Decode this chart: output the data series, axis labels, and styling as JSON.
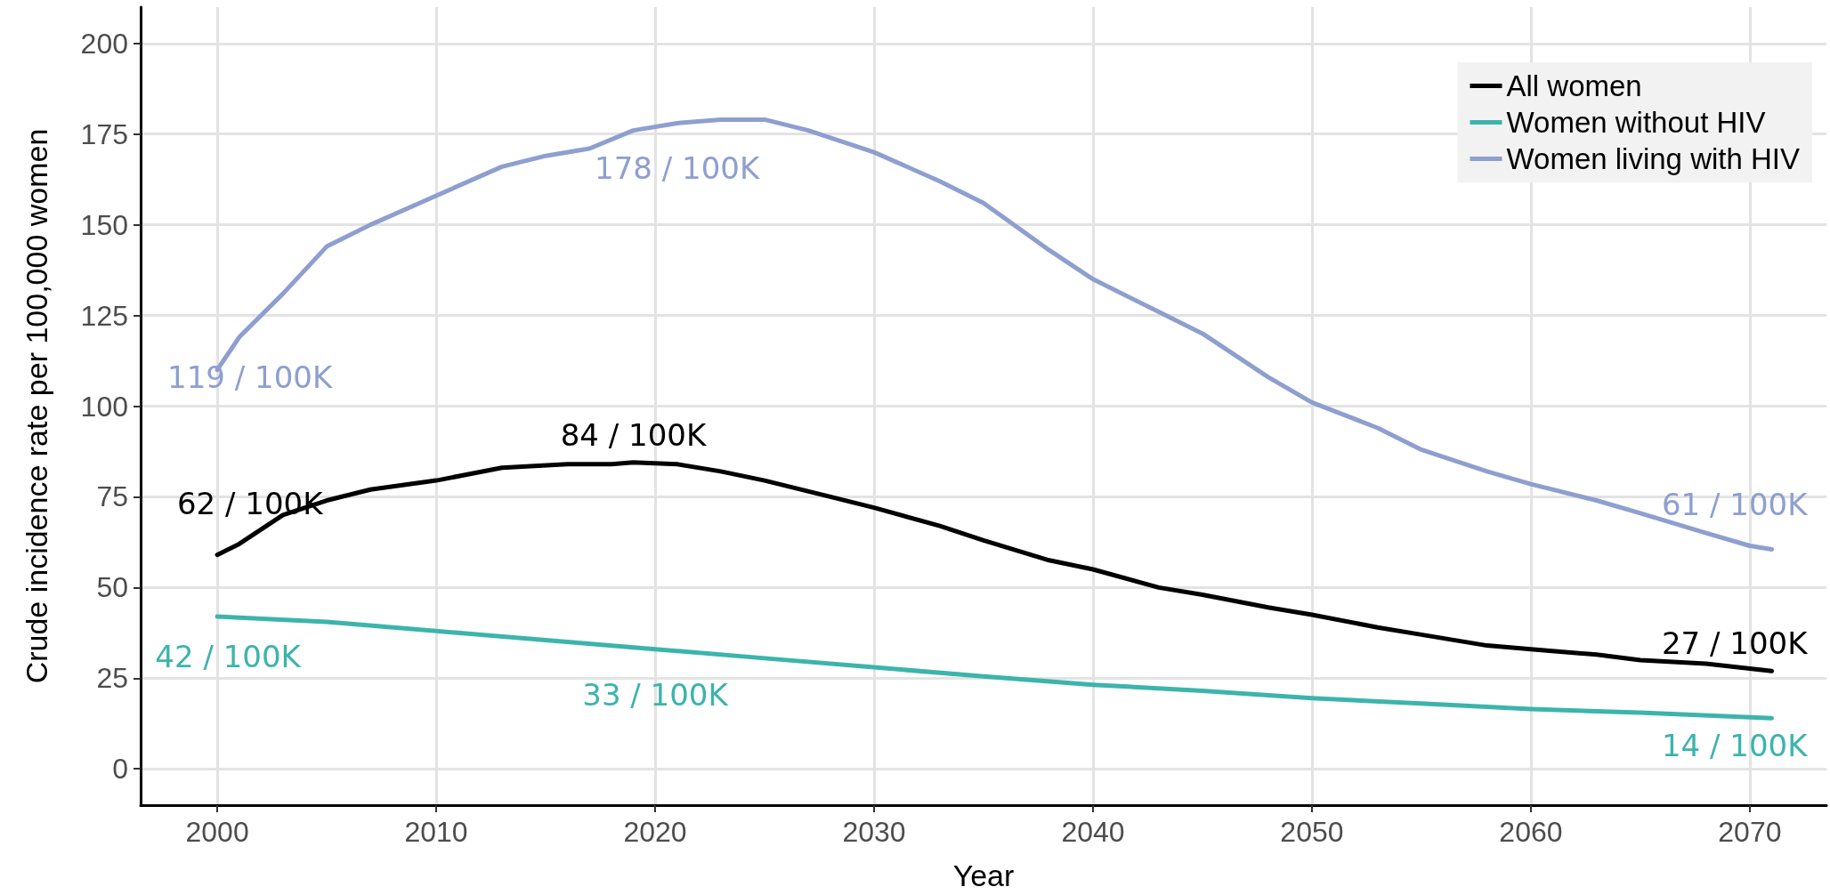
{
  "chart_data": {
    "type": "line",
    "xlabel": "Year",
    "ylabel": "Crude incidence rate per 100,000 women",
    "xlim": [
      1996.5,
      2073.5
    ],
    "ylim": [
      -10,
      210
    ],
    "xticks": [
      2000,
      2010,
      2020,
      2030,
      2040,
      2050,
      2060,
      2070
    ],
    "yticks": [
      0,
      25,
      50,
      75,
      100,
      125,
      150,
      175,
      200
    ],
    "grid": true,
    "legend": "top right",
    "marker": "none",
    "line_style": "solid",
    "series": [
      {
        "name": "All women",
        "color": "#000000",
        "x": [
          2000,
          2001,
          2003,
          2005,
          2007,
          2010,
          2013,
          2016,
          2018,
          2019,
          2021,
          2023,
          2025,
          2028,
          2030,
          2033,
          2035,
          2038,
          2040,
          2043,
          2045,
          2048,
          2050,
          2053,
          2055,
          2058,
          2060,
          2063,
          2065,
          2068,
          2071
        ],
        "values": [
          59,
          62,
          70,
          74,
          77,
          79.5,
          83,
          84,
          84,
          84.5,
          84,
          82,
          79.5,
          75,
          72,
          67,
          63,
          57.5,
          55,
          50,
          48,
          44.5,
          42.5,
          39,
          37,
          34,
          33,
          31.5,
          30,
          29,
          27
        ],
        "value_labels": [
          null,
          "62 / 100K",
          null,
          null,
          null,
          null,
          null,
          null,
          null,
          "84 / 100K",
          null,
          null,
          null,
          null,
          null,
          null,
          null,
          null,
          null,
          null,
          null,
          null,
          null,
          null,
          null,
          null,
          null,
          null,
          null,
          null,
          "27 / 100K"
        ]
      },
      {
        "name": "Women without HIV",
        "color": "#3cb4ac",
        "x": [
          2000,
          2005,
          2010,
          2015,
          2020,
          2025,
          2030,
          2035,
          2040,
          2045,
          2050,
          2055,
          2060,
          2065,
          2071
        ],
        "values": [
          42,
          40.5,
          38,
          35.5,
          33,
          30.5,
          28,
          25.5,
          23.2,
          21.5,
          19.5,
          18,
          16.5,
          15.5,
          14
        ],
        "value_labels": [
          "42 / 100K",
          null,
          null,
          null,
          "33 / 100K",
          null,
          null,
          null,
          null,
          null,
          null,
          null,
          null,
          null,
          "14 / 100K"
        ]
      },
      {
        "name": "Women living with HIV",
        "color": "#8e9fcf",
        "x": [
          2000,
          2001,
          2003,
          2005,
          2007,
          2010,
          2013,
          2015,
          2017,
          2019,
          2021,
          2023,
          2025,
          2027,
          2030,
          2033,
          2035,
          2038,
          2040,
          2043,
          2045,
          2048,
          2050,
          2053,
          2055,
          2058,
          2060,
          2063,
          2065,
          2068,
          2070,
          2071
        ],
        "values": [
          110,
          119,
          131,
          144,
          150,
          158,
          166,
          169,
          171,
          176,
          178,
          179,
          179,
          176,
          170,
          162,
          156,
          143,
          135,
          126,
          120,
          108,
          101,
          94,
          88,
          82,
          78.5,
          74,
          70.5,
          65,
          61.5,
          60.5
        ],
        "value_labels": [
          null,
          "119 / 100K",
          null,
          null,
          null,
          null,
          null,
          null,
          null,
          null,
          "178 / 100K",
          null,
          null,
          null,
          null,
          null,
          null,
          null,
          null,
          null,
          null,
          null,
          null,
          null,
          null,
          null,
          null,
          null,
          null,
          null,
          null,
          "61 / 100K"
        ]
      }
    ]
  }
}
